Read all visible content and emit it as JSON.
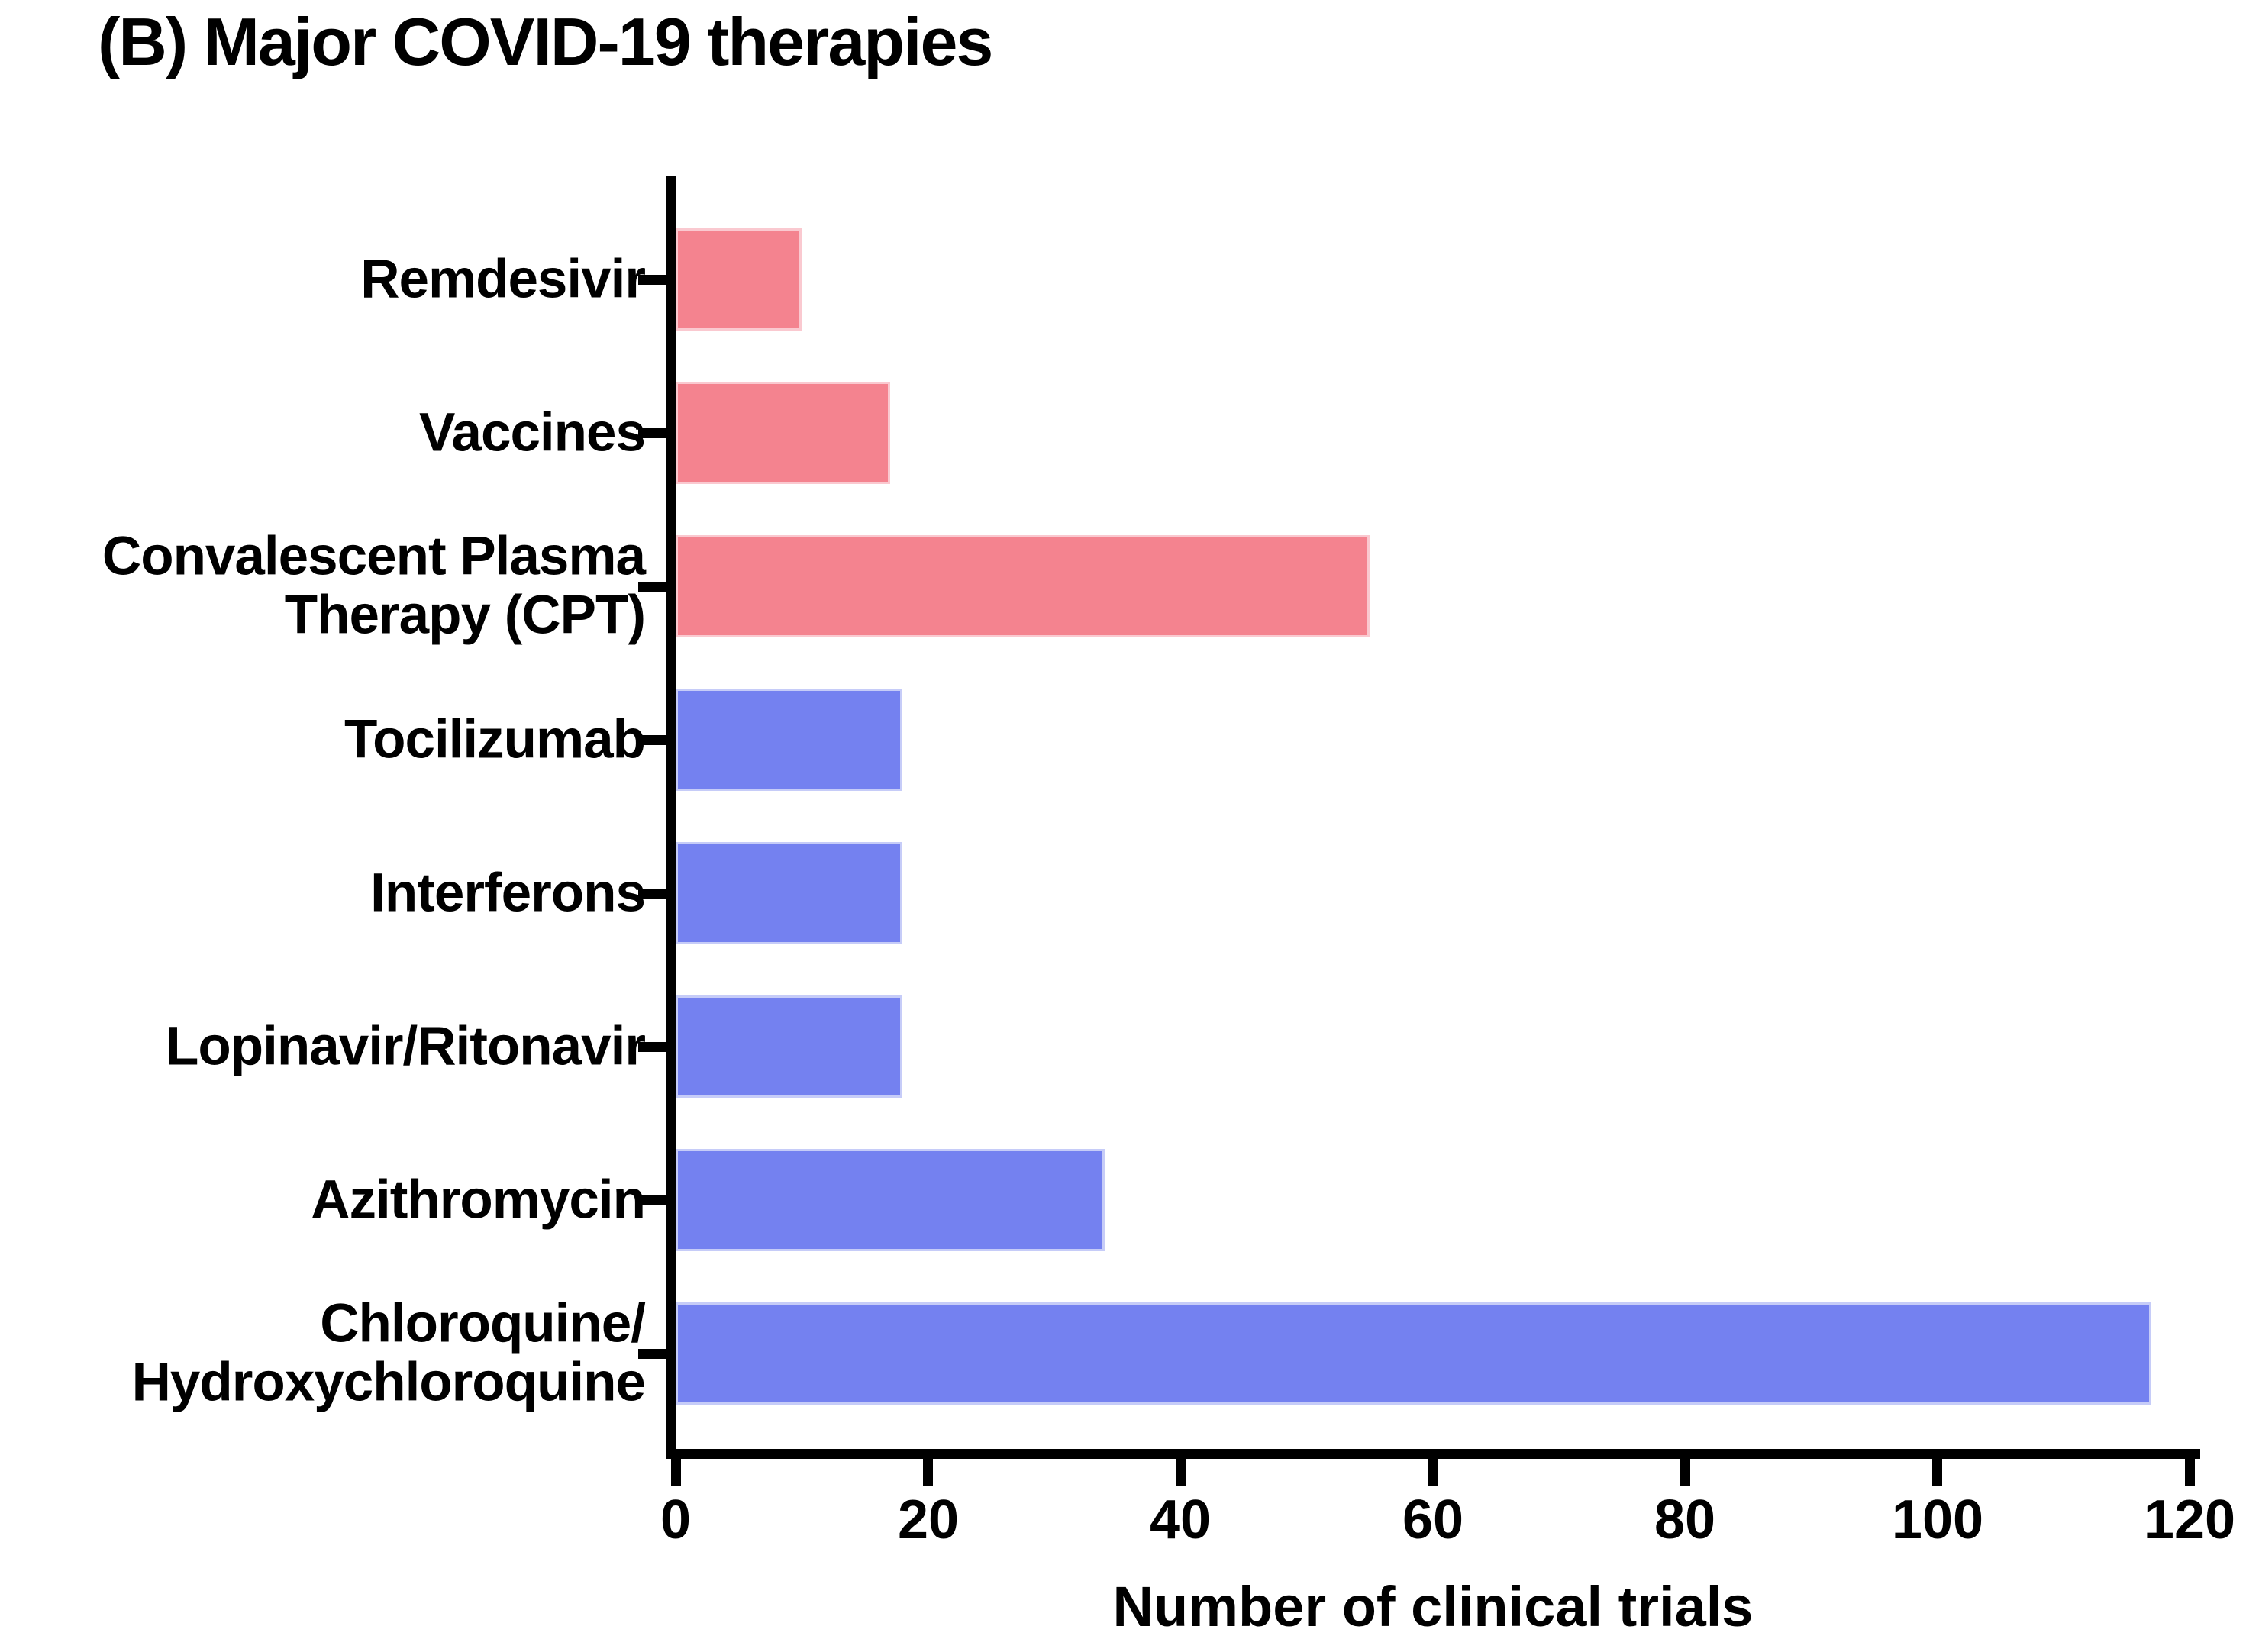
{
  "title": "(B) Major COVID-19 therapies",
  "chart_data": {
    "type": "bar",
    "orientation": "horizontal",
    "title": "(B) Major COVID-19 therapies",
    "xlabel": "Number of clinical trials",
    "xlim": [
      0,
      120
    ],
    "xticks": [
      0,
      20,
      40,
      60,
      80,
      100,
      120
    ],
    "grid": false,
    "legend_position": "none",
    "categories": [
      "Remdesivir",
      "Vaccines",
      "Convalescent Plasma\nTherapy (CPT)",
      "Tocilizumab",
      "Interferons",
      "Lopinavir/Ritonavir",
      "Azithromycin",
      "Chloroquine/\nHydroxychloroquine"
    ],
    "values": [
      10,
      17,
      55,
      18,
      18,
      18,
      34,
      117
    ],
    "bar_colors": [
      "#F4838F",
      "#F4838F",
      "#F4838F",
      "#7481F0",
      "#7481F0",
      "#7481F0",
      "#7481F0",
      "#7481F0"
    ],
    "bar_border_colors": [
      "#FAC9D0",
      "#FAC9D0",
      "#FAC9D0",
      "#C6CCF8",
      "#C6CCF8",
      "#C6CCF8",
      "#C6CCF8",
      "#C6CCF8"
    ],
    "colors": {
      "pink_fill": "#F4838F",
      "blue_fill": "#7481F0",
      "axis": "#000000",
      "text": "#000000",
      "background": "#ffffff"
    }
  }
}
